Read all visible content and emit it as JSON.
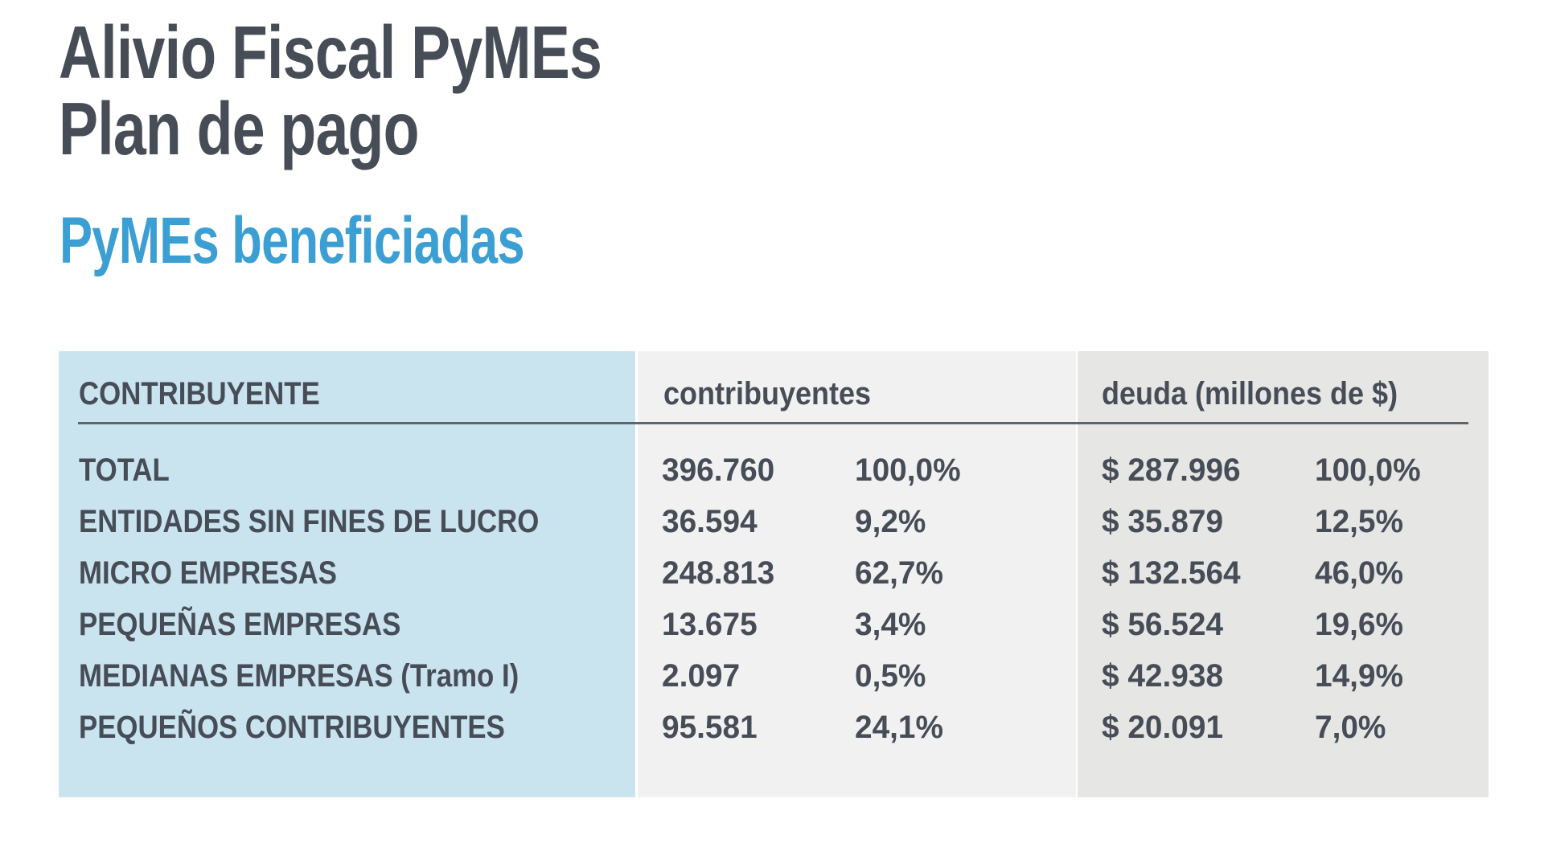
{
  "page": {
    "title_line1": "Alivio Fiscal PyMEs",
    "title_line2": "Plan de pago",
    "subtitle": "PyMEs beneficiadas"
  },
  "colors": {
    "text_dark": "#474d57",
    "subtitle_blue": "#3b9fd3",
    "col_contribuyente_bg": "#c9e3ef",
    "col_contribuyentes_bg": "#f1f1f2",
    "col_deuda_bg": "#e6e6e5",
    "header_rule": "#5d656d"
  },
  "table": {
    "headers": {
      "contribuyente": "CONTRIBUYENTE",
      "contribuyentes": "contribuyentes",
      "deuda": "deuda (millones de $)"
    },
    "rows": [
      {
        "label": "TOTAL",
        "c_n": "396.760",
        "c_p": "100,0%",
        "d_n": "$ 287.996",
        "d_p": "100,0%"
      },
      {
        "label": "ENTIDADES SIN FINES DE LUCRO",
        "c_n": "36.594",
        "c_p": "9,2%",
        "d_n": "$ 35.879",
        "d_p": "12,5%"
      },
      {
        "label": "MICRO EMPRESAS",
        "c_n": "248.813",
        "c_p": "62,7%",
        "d_n": "$ 132.564",
        "d_p": "46,0%"
      },
      {
        "label": "PEQUEÑAS EMPRESAS",
        "c_n": "13.675",
        "c_p": "3,4%",
        "d_n": "$ 56.524",
        "d_p": "19,6%"
      },
      {
        "label": "MEDIANAS EMPRESAS (Tramo I)",
        "c_n": "2.097",
        "c_p": "0,5%",
        "d_n": "$ 42.938",
        "d_p": "14,9%"
      },
      {
        "label": "PEQUEÑOS CONTRIBUYENTES",
        "c_n": "95.581",
        "c_p": "24,1%",
        "d_n": "$ 20.091",
        "d_p": "7,0%"
      }
    ]
  },
  "chart_data": {
    "type": "table",
    "title": "Alivio Fiscal PyMEs — Plan de pago",
    "subtitle": "PyMEs beneficiadas",
    "columns": [
      "CONTRIBUYENTE",
      "contribuyentes (cantidad)",
      "contribuyentes (%)",
      "deuda (millones de $)",
      "deuda (%)"
    ],
    "categories": [
      "TOTAL",
      "ENTIDADES SIN FINES DE LUCRO",
      "MICRO EMPRESAS",
      "PEQUEÑAS EMPRESAS",
      "MEDIANAS EMPRESAS (Tramo I)",
      "PEQUEÑOS CONTRIBUYENTES"
    ],
    "series": [
      {
        "name": "contribuyentes",
        "values": [
          396760,
          36594,
          248813,
          13675,
          2097,
          95581
        ]
      },
      {
        "name": "contribuyentes_pct",
        "values": [
          100.0,
          9.2,
          62.7,
          3.4,
          0.5,
          24.1
        ]
      },
      {
        "name": "deuda_millones",
        "values": [
          287996,
          35879,
          132564,
          56524,
          42938,
          20091
        ]
      },
      {
        "name": "deuda_pct",
        "values": [
          100.0,
          12.5,
          46.0,
          19.6,
          14.9,
          7.0
        ]
      }
    ]
  }
}
